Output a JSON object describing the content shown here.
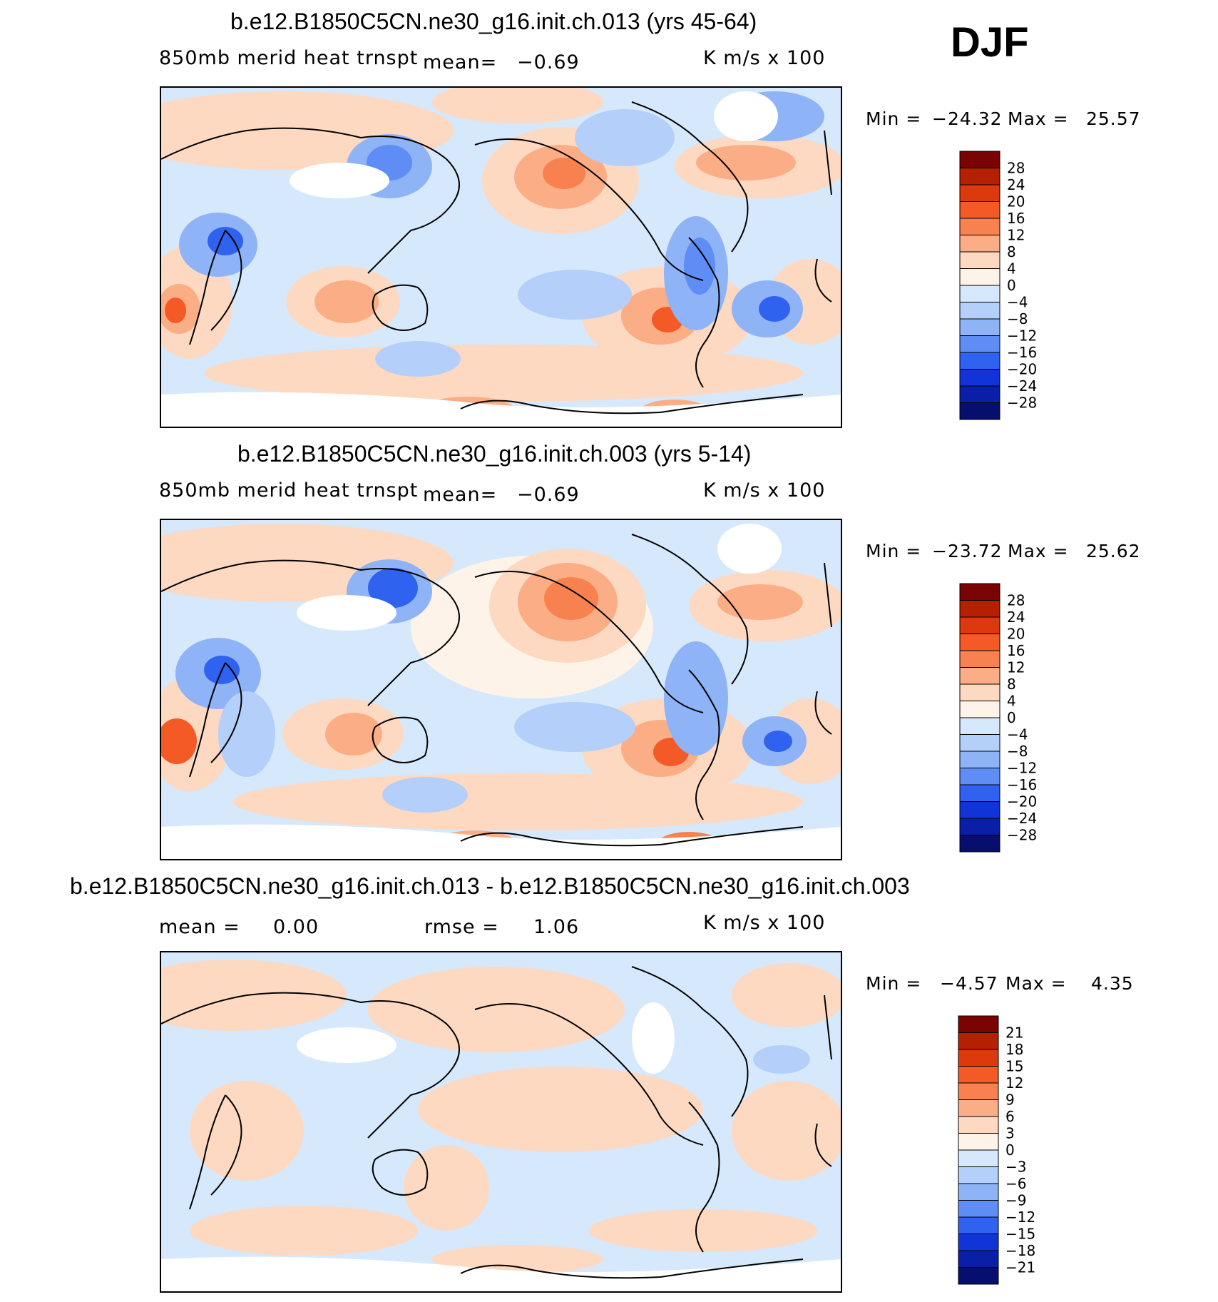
{
  "season": "DJF",
  "panels": [
    {
      "title": "b.e12.B1850C5CN.ne30_g16.init.ch.013 (yrs 45-64)",
      "variable": "850mb merid heat trnspt",
      "stat1": "mean=",
      "stat1_value": "−0.69",
      "units": "K m/s x 100",
      "min_label": "Min =",
      "min_value": "−24.32",
      "max_label": "Max =",
      "max_value": "25.57"
    },
    {
      "title": "b.e12.B1850C5CN.ne30_g16.init.ch.003 (yrs 5-14)",
      "variable": "850mb merid heat trnspt",
      "stat1": "mean=",
      "stat1_value": "−0.69",
      "units": "K m/s x 100",
      "min_label": "Min =",
      "min_value": "−23.72",
      "max_label": "Max =",
      "max_value": "25.62"
    },
    {
      "title": "b.e12.B1850C5CN.ne30_g16.init.ch.013 - b.e12.B1850C5CN.ne30_g16.init.ch.003",
      "stat1": "mean =",
      "stat1_value": "0.00",
      "stat2": "rmse =",
      "stat2_value": "1.06",
      "units": "K m/s x 100",
      "min_label": "Min =",
      "min_value": "−4.57",
      "max_label": "Max =",
      "max_value": "4.35"
    }
  ],
  "chart_data": [
    {
      "type": "heatmap",
      "colorbar": {
        "levels": [
          "28",
          "24",
          "20",
          "16",
          "12",
          "8",
          "4",
          "0",
          "−4",
          "−8",
          "−12",
          "−16",
          "−20",
          "−24",
          "−28"
        ],
        "colors": [
          "#7a0403",
          "#b52000",
          "#dc3a0c",
          "#f45a26",
          "#f8824f",
          "#fbae86",
          "#fdd9c2",
          "#fef3e8",
          "#d6e8fb",
          "#b4cff9",
          "#8fb3f7",
          "#5e8ef5",
          "#2f62ee",
          "#1034d6",
          "#0a1fa8",
          "#060e6e"
        ]
      }
    },
    {
      "type": "heatmap",
      "colorbar": {
        "levels": [
          "28",
          "24",
          "20",
          "16",
          "12",
          "8",
          "4",
          "0",
          "−4",
          "−8",
          "−12",
          "−16",
          "−20",
          "−24",
          "−28"
        ],
        "colors": [
          "#7a0403",
          "#b52000",
          "#dc3a0c",
          "#f45a26",
          "#f8824f",
          "#fbae86",
          "#fdd9c2",
          "#fef3e8",
          "#d6e8fb",
          "#b4cff9",
          "#8fb3f7",
          "#5e8ef5",
          "#2f62ee",
          "#1034d6",
          "#0a1fa8",
          "#060e6e"
        ]
      }
    },
    {
      "type": "heatmap",
      "colorbar": {
        "levels": [
          "21",
          "18",
          "15",
          "12",
          "9",
          "6",
          "3",
          "0",
          "−3",
          "−6",
          "−9",
          "−12",
          "−15",
          "−18",
          "−21"
        ],
        "colors": [
          "#7a0403",
          "#b52000",
          "#dc3a0c",
          "#f45a26",
          "#f8824f",
          "#fbae86",
          "#fdd9c2",
          "#fef3e8",
          "#d6e8fb",
          "#b4cff9",
          "#8fb3f7",
          "#5e8ef5",
          "#2f62ee",
          "#1034d6",
          "#0a1fa8",
          "#060e6e"
        ]
      }
    }
  ]
}
